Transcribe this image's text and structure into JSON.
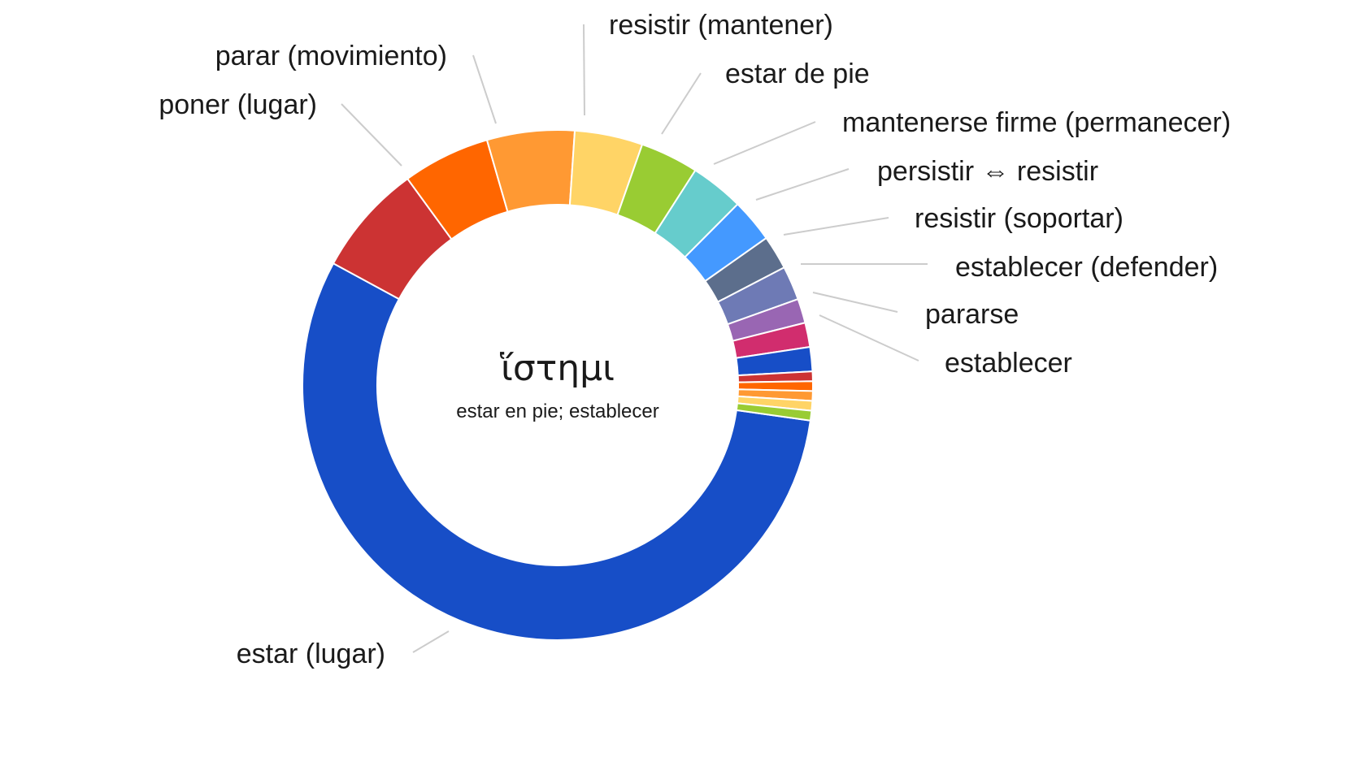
{
  "chart_data": {
    "type": "pie",
    "donut": true,
    "center_word": "ἵστημι",
    "center_gloss": "estar en pie; establecer",
    "slices": [
      {
        "label": "estar (lugar)",
        "value": 54.3,
        "color": "#174ec7"
      },
      {
        "label": "poner (lugar)",
        "value": 6.9,
        "color": "#cc3333"
      },
      {
        "label": "parar (movimiento)",
        "value": 5.4,
        "color": "#ff6600"
      },
      {
        "label": "resistir (mantener)",
        "value": 5.4,
        "color": "#ff9933"
      },
      {
        "label": "estar de pie",
        "value": 4.2,
        "color": "#ffd466"
      },
      {
        "label": "mantenerse firme (permanecer)",
        "value": 3.6,
        "color": "#99cc33"
      },
      {
        "label": "persistir ⇔ resistir",
        "value": 3.3,
        "color": "#66cccc"
      },
      {
        "label": "resistir (soportar)",
        "value": 2.7,
        "color": "#4499ff"
      },
      {
        "label": "establecer (defender)",
        "value": 2.1,
        "color": "#5c6e8c"
      },
      {
        "label": "pararse",
        "value": 2.1,
        "color": "#6e7ab5"
      },
      {
        "label": "establecer",
        "value": 1.5,
        "color": "#9966b3"
      },
      {
        "label": "",
        "value": 1.5,
        "color": "#d12d6e"
      },
      {
        "label": "",
        "value": 1.5,
        "color": "#174ec7"
      },
      {
        "label": "",
        "value": 0.6,
        "color": "#cc3333"
      },
      {
        "label": "",
        "value": 0.6,
        "color": "#ff6600"
      },
      {
        "label": "",
        "value": 0.6,
        "color": "#ff9933"
      },
      {
        "label": "",
        "value": 0.6,
        "color": "#ffd466"
      },
      {
        "label": "",
        "value": 0.6,
        "color": "#99cc33"
      }
    ]
  }
}
